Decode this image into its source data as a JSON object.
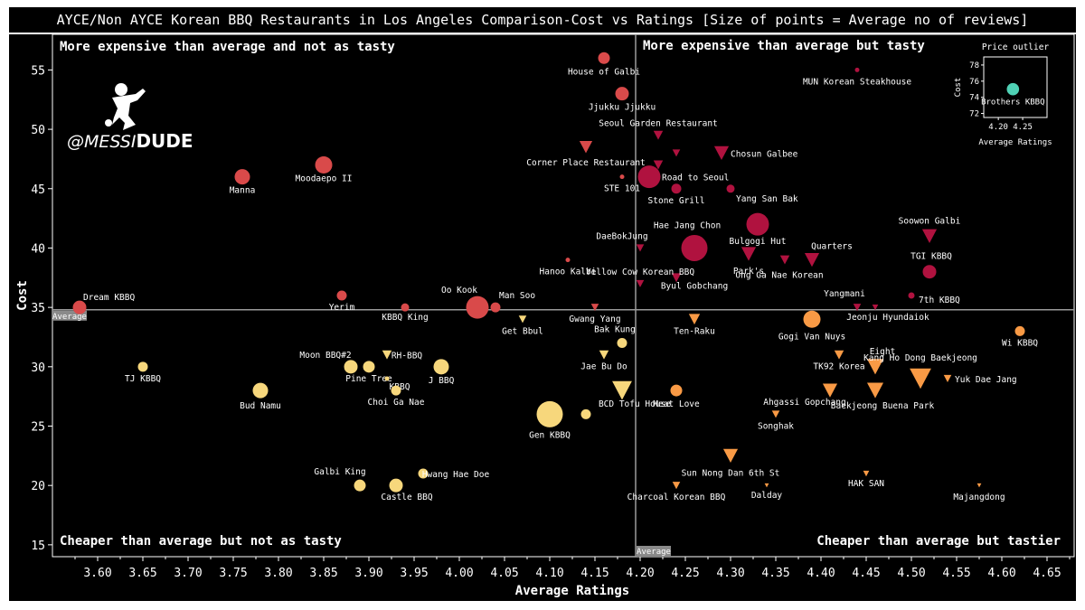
{
  "chart_data": {
    "type": "scatter",
    "title": "AYCE/Non AYCE Korean BBQ Restaurants in Los Angeles Comparison-Cost vs Ratings [Size of points = Average no of reviews]",
    "xlabel": "Average Ratings",
    "ylabel": "Cost",
    "xlim": [
      3.55,
      4.68
    ],
    "ylim": [
      14,
      58
    ],
    "x_ticks": [
      "3.60",
      "3.65",
      "3.70",
      "3.75",
      "3.80",
      "3.85",
      "3.90",
      "3.95",
      "4.00",
      "4.05",
      "4.10",
      "4.15",
      "4.20",
      "4.25",
      "4.30",
      "4.35",
      "4.40",
      "4.45",
      "4.50",
      "4.55",
      "4.60",
      "4.65"
    ],
    "y_ticks": [
      "15",
      "20",
      "25",
      "30",
      "35",
      "40",
      "45",
      "50",
      "55"
    ],
    "average_x": 4.195,
    "average_y": 34.8,
    "average_label": "Average",
    "grid": false,
    "quadrant_labels": {
      "top_left": "More expensive than average and not as tasty",
      "top_right": "More expensive than average but tasty",
      "bottom_left": "Cheaper than average but not as tasty",
      "bottom_right": "Cheaper than average but tastier"
    },
    "marker_legend": {
      "circle": "AYCE",
      "triangle": "Non AYCE"
    },
    "colors": {
      "exp_not_tasty": "#d94a4a",
      "exp_tasty": "#b0123f",
      "cheap_not_tasty": "#f7d77c",
      "cheap_tasty": "#f99a45",
      "outlier": "#4fd1b5"
    },
    "points": [
      {
        "name": "House of Galbi",
        "x": 4.16,
        "y": 56,
        "size": 5,
        "shape": "circle",
        "group": "exp_not_tasty"
      },
      {
        "name": "Jjukku Jjukku",
        "x": 4.18,
        "y": 53,
        "size": 6,
        "shape": "circle",
        "group": "exp_not_tasty"
      },
      {
        "name": "Manna",
        "x": 3.76,
        "y": 46,
        "size": 7,
        "shape": "circle",
        "group": "exp_not_tasty"
      },
      {
        "name": "Moodaepo II",
        "x": 3.85,
        "y": 47,
        "size": 8,
        "shape": "circle",
        "group": "exp_not_tasty"
      },
      {
        "name": "Corner Place Restaurant",
        "x": 4.14,
        "y": 48.5,
        "size": 6,
        "shape": "triangle",
        "group": "exp_not_tasty"
      },
      {
        "name": "STE 101",
        "x": 4.18,
        "y": 46,
        "size": 1,
        "shape": "circle",
        "group": "exp_not_tasty"
      },
      {
        "name": "Hanoo Kalbi",
        "x": 4.12,
        "y": 39,
        "size": 1,
        "shape": "circle",
        "group": "exp_not_tasty"
      },
      {
        "name": "Dream KBBQ",
        "x": 3.58,
        "y": 35,
        "size": 6,
        "shape": "circle",
        "group": "exp_not_tasty"
      },
      {
        "name": "Yerim",
        "x": 3.87,
        "y": 36,
        "size": 4,
        "shape": "circle",
        "group": "exp_not_tasty"
      },
      {
        "name": "KBBQ King",
        "x": 3.94,
        "y": 35,
        "size": 3,
        "shape": "circle",
        "group": "exp_not_tasty"
      },
      {
        "name": "Oo Kook",
        "x": 4.02,
        "y": 35,
        "size": 11,
        "shape": "circle",
        "group": "exp_not_tasty"
      },
      {
        "name": "Man Soo",
        "x": 4.04,
        "y": 35,
        "size": 4,
        "shape": "circle",
        "group": "exp_not_tasty"
      },
      {
        "name": "Gwang Yang",
        "x": 4.15,
        "y": 35,
        "size": 3,
        "shape": "triangle",
        "group": "exp_not_tasty"
      },
      {
        "name": "Seoul Garden Restaurant",
        "x": 4.22,
        "y": 49.5,
        "size": 4,
        "shape": "triangle",
        "group": "exp_tasty"
      },
      {
        "name": "Chosun Galbee",
        "x": 4.29,
        "y": 48,
        "size": 7,
        "shape": "triangle",
        "group": "exp_tasty"
      },
      {
        "name": "",
        "x": 4.24,
        "y": 48,
        "size": 3,
        "shape": "triangle",
        "group": "exp_tasty"
      },
      {
        "name": "",
        "x": 4.22,
        "y": 47,
        "size": 4,
        "shape": "triangle",
        "group": "exp_tasty"
      },
      {
        "name": "Road to Seoul",
        "x": 4.21,
        "y": 46,
        "size": 11,
        "shape": "circle",
        "group": "exp_tasty"
      },
      {
        "name": "Stone Grill",
        "x": 4.24,
        "y": 45,
        "size": 4,
        "shape": "circle",
        "group": "exp_tasty"
      },
      {
        "name": "Yang San Bak",
        "x": 4.3,
        "y": 45,
        "size": 3,
        "shape": "circle",
        "group": "exp_tasty"
      },
      {
        "name": "MUN Korean Steakhouse",
        "x": 4.44,
        "y": 55,
        "size": 1,
        "shape": "circle",
        "group": "exp_tasty"
      },
      {
        "name": "DaeBokJung",
        "x": 4.2,
        "y": 40,
        "size": 3,
        "shape": "triangle",
        "group": "exp_tasty"
      },
      {
        "name": "Hae Jang Chon",
        "x": 4.26,
        "y": 40,
        "size": 13,
        "shape": "circle",
        "group": "exp_tasty"
      },
      {
        "name": "Bulgogi Hut",
        "x": 4.33,
        "y": 42,
        "size": 11,
        "shape": "circle",
        "group": "exp_tasty"
      },
      {
        "name": "Soowon Galbi",
        "x": 4.52,
        "y": 41,
        "size": 7,
        "shape": "triangle",
        "group": "exp_tasty"
      },
      {
        "name": "Park's",
        "x": 4.32,
        "y": 39.5,
        "size": 7,
        "shape": "triangle",
        "group": "exp_tasty"
      },
      {
        "name": "Quarters",
        "x": 4.39,
        "y": 39,
        "size": 7,
        "shape": "triangle",
        "group": "exp_tasty"
      },
      {
        "name": "Ong Ga Nae Korean",
        "x": 4.36,
        "y": 39,
        "size": 4,
        "shape": "triangle",
        "group": "exp_tasty"
      },
      {
        "name": "Byul Gobchang",
        "x": 4.24,
        "y": 37.5,
        "size": 4,
        "shape": "triangle",
        "group": "exp_tasty"
      },
      {
        "name": "TGI KBBQ",
        "x": 4.52,
        "y": 38,
        "size": 6,
        "shape": "circle",
        "group": "exp_tasty"
      },
      {
        "name": "Yellow Cow Korean BBQ",
        "x": 4.2,
        "y": 37,
        "size": 3,
        "shape": "triangle",
        "group": "exp_tasty"
      },
      {
        "name": "Yangmani",
        "x": 4.44,
        "y": 35,
        "size": 3,
        "shape": "triangle",
        "group": "exp_tasty"
      },
      {
        "name": "7th KBBQ",
        "x": 4.5,
        "y": 36,
        "size": 2,
        "shape": "circle",
        "group": "exp_tasty"
      },
      {
        "name": "Jeonju Hyundaiok",
        "x": 4.46,
        "y": 35,
        "size": 2,
        "shape": "triangle",
        "group": "exp_tasty"
      },
      {
        "name": "Get Bbul",
        "x": 4.07,
        "y": 34,
        "size": 3,
        "shape": "triangle",
        "group": "cheap_not_tasty"
      },
      {
        "name": "Bak Kung",
        "x": 4.18,
        "y": 32,
        "size": 4,
        "shape": "circle",
        "group": "cheap_not_tasty"
      },
      {
        "name": "Jae Bu Do",
        "x": 4.16,
        "y": 31,
        "size": 4,
        "shape": "triangle",
        "group": "cheap_not_tasty"
      },
      {
        "name": "Moon BBQ#2",
        "x": 3.88,
        "y": 30,
        "size": 6,
        "shape": "circle",
        "group": "cheap_not_tasty"
      },
      {
        "name": "RH-BBQ",
        "x": 3.92,
        "y": 31,
        "size": 4,
        "shape": "triangle",
        "group": "cheap_not_tasty"
      },
      {
        "name": "Pine Tree",
        "x": 3.9,
        "y": 30,
        "size": 5,
        "shape": "circle",
        "group": "cheap_not_tasty"
      },
      {
        "name": "KBBQ",
        "x": 3.92,
        "y": 29,
        "size": 1,
        "shape": "circle",
        "group": "cheap_not_tasty"
      },
      {
        "name": "J BBQ",
        "x": 3.98,
        "y": 30,
        "size": 7,
        "shape": "circle",
        "group": "cheap_not_tasty"
      },
      {
        "name": "TJ KBBQ",
        "x": 3.65,
        "y": 30,
        "size": 4,
        "shape": "circle",
        "group": "cheap_not_tasty"
      },
      {
        "name": "Bud Namu",
        "x": 3.78,
        "y": 28,
        "size": 7,
        "shape": "circle",
        "group": "cheap_not_tasty"
      },
      {
        "name": "Choi Ga Nae",
        "x": 3.93,
        "y": 28,
        "size": 4,
        "shape": "circle",
        "group": "cheap_not_tasty"
      },
      {
        "name": "BCD Tofu House",
        "x": 4.18,
        "y": 28,
        "size": 10,
        "shape": "triangle",
        "group": "cheap_not_tasty"
      },
      {
        "name": "Gen KBBQ",
        "x": 4.1,
        "y": 26,
        "size": 13,
        "shape": "circle",
        "group": "cheap_not_tasty"
      },
      {
        "name": "",
        "x": 4.14,
        "y": 26,
        "size": 4,
        "shape": "circle",
        "group": "cheap_not_tasty"
      },
      {
        "name": "Galbi King",
        "x": 3.89,
        "y": 20,
        "size": 5,
        "shape": "circle",
        "group": "cheap_not_tasty"
      },
      {
        "name": "Hwang Hae Doe",
        "x": 3.96,
        "y": 21,
        "size": 4,
        "shape": "circle",
        "group": "cheap_not_tasty"
      },
      {
        "name": "Castle BBQ",
        "x": 3.93,
        "y": 20,
        "size": 6,
        "shape": "circle",
        "group": "cheap_not_tasty"
      },
      {
        "name": "Ten-Raku",
        "x": 4.26,
        "y": 34,
        "size": 5,
        "shape": "triangle",
        "group": "cheap_tasty"
      },
      {
        "name": "Gogi Van Nuys",
        "x": 4.39,
        "y": 34,
        "size": 8,
        "shape": "circle",
        "group": "cheap_tasty"
      },
      {
        "name": "Wi KBBQ",
        "x": 4.62,
        "y": 33,
        "size": 4,
        "shape": "circle",
        "group": "cheap_tasty"
      },
      {
        "name": "TK92 Korea",
        "x": 4.42,
        "y": 31,
        "size": 4,
        "shape": "triangle",
        "group": "cheap_tasty"
      },
      {
        "name": "Eight",
        "x": 4.46,
        "y": 30,
        "size": 8,
        "shape": "triangle",
        "group": "cheap_tasty"
      },
      {
        "name": "Kang Ho Dong Baekjeong",
        "x": 4.51,
        "y": 29,
        "size": 11,
        "shape": "triangle",
        "group": "cheap_tasty"
      },
      {
        "name": "Yuk Dae Jang",
        "x": 4.54,
        "y": 29,
        "size": 3,
        "shape": "triangle",
        "group": "cheap_tasty"
      },
      {
        "name": "Meat Love",
        "x": 4.24,
        "y": 28,
        "size": 5,
        "shape": "circle",
        "group": "cheap_tasty"
      },
      {
        "name": "Ahgassi Gopchang",
        "x": 4.41,
        "y": 28,
        "size": 7,
        "shape": "triangle",
        "group": "cheap_tasty"
      },
      {
        "name": "Baekjeong Buena Park",
        "x": 4.46,
        "y": 28,
        "size": 8,
        "shape": "triangle",
        "group": "cheap_tasty"
      },
      {
        "name": "Songhak",
        "x": 4.35,
        "y": 26,
        "size": 3,
        "shape": "triangle",
        "group": "cheap_tasty"
      },
      {
        "name": "Sun Nong Dan 6th St",
        "x": 4.3,
        "y": 22.5,
        "size": 7,
        "shape": "triangle",
        "group": "cheap_tasty"
      },
      {
        "name": "HAK SAN",
        "x": 4.45,
        "y": 21,
        "size": 2,
        "shape": "triangle",
        "group": "cheap_tasty"
      },
      {
        "name": "Charcoal Korean BBQ",
        "x": 4.24,
        "y": 20,
        "size": 3,
        "shape": "triangle",
        "group": "cheap_tasty"
      },
      {
        "name": "Dalday",
        "x": 4.34,
        "y": 20,
        "size": 1,
        "shape": "triangle",
        "group": "cheap_tasty"
      },
      {
        "name": "Majangdong",
        "x": 4.575,
        "y": 20,
        "size": 1,
        "shape": "triangle",
        "group": "cheap_tasty"
      }
    ],
    "inset": {
      "title": "Price outlier",
      "xlabel": "Average Ratings",
      "ylabel": "Cost",
      "xlim": [
        4.17,
        4.3
      ],
      "ylim": [
        71.5,
        79
      ],
      "x_ticks": [
        "4.20",
        "4.25"
      ],
      "y_ticks": [
        "72",
        "74",
        "76",
        "78"
      ],
      "points": [
        {
          "name": "Brothers KBBQ",
          "x": 4.23,
          "y": 75,
          "size": 7,
          "shape": "circle",
          "group": "outlier"
        }
      ]
    }
  },
  "branding": {
    "logo_prefix": "@MESSI",
    "logo_suffix": "DUDE"
  }
}
